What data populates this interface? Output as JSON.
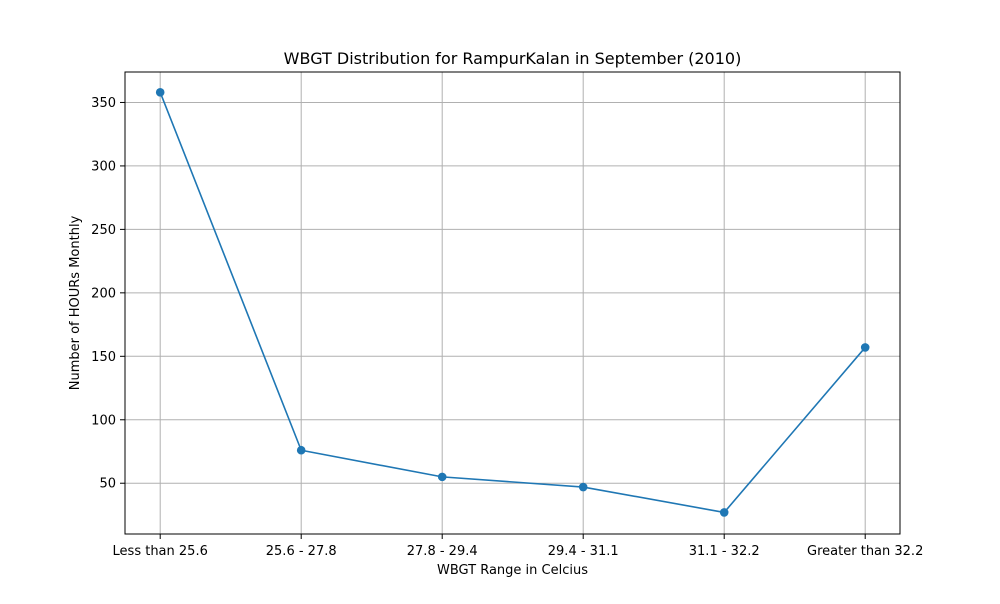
{
  "chart_data": {
    "type": "line",
    "title": "WBGT Distribution for RampurKalan in September (2010)",
    "xlabel": "WBGT Range in Celcius",
    "ylabel": "Number of HOURs Monthly",
    "categories": [
      "Less than 25.6",
      "25.6 - 27.8",
      "27.8 - 29.4",
      "29.4 - 31.1",
      "31.1 - 32.2",
      "Greater than 32.2"
    ],
    "series": [
      {
        "values": [
          358,
          76,
          55,
          47,
          27,
          157
        ]
      }
    ],
    "ylim": [
      10,
      374
    ],
    "yticks": [
      50,
      100,
      150,
      200,
      250,
      300,
      350
    ],
    "grid": true,
    "line_color": "#1f77b4"
  }
}
